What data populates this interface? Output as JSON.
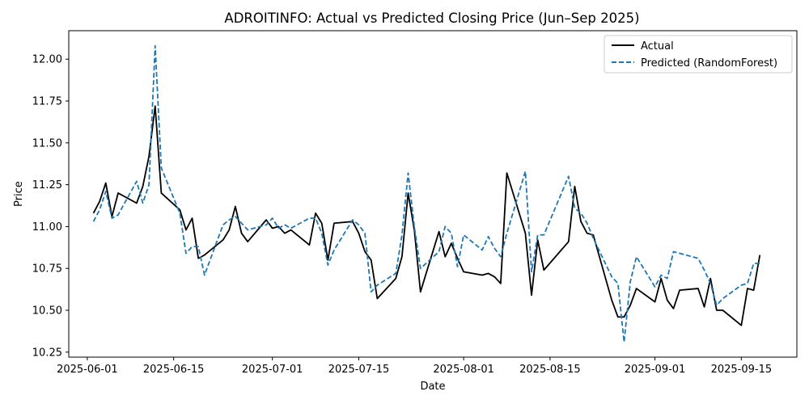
{
  "chart_data": {
    "type": "line",
    "title": "ADROITINFO: Actual vs Predicted Closing Price (Jun–Sep 2025)",
    "xlabel": "Date",
    "ylabel": "Price",
    "xlim": [
      "2025-05-29",
      "2025-09-24"
    ],
    "ylim": [
      10.22,
      12.17
    ],
    "x_ticks": [
      "2025-06-01",
      "2025-06-15",
      "2025-07-01",
      "2025-07-15",
      "2025-08-01",
      "2025-08-15",
      "2025-09-01",
      "2025-09-15"
    ],
    "y_ticks": [
      10.25,
      10.5,
      10.75,
      11.0,
      11.25,
      11.5,
      11.75,
      12.0
    ],
    "y_tick_labels": [
      "10.25",
      "10.50",
      "10.75",
      "11.00",
      "11.25",
      "11.50",
      "11.75",
      "12.00"
    ],
    "legend_position": "top-right",
    "grid": false,
    "x": [
      "2025-06-02",
      "2025-06-03",
      "2025-06-04",
      "2025-06-05",
      "2025-06-06",
      "2025-06-09",
      "2025-06-10",
      "2025-06-11",
      "2025-06-12",
      "2025-06-13",
      "2025-06-16",
      "2025-06-17",
      "2025-06-18",
      "2025-06-19",
      "2025-06-20",
      "2025-06-23",
      "2025-06-24",
      "2025-06-25",
      "2025-06-26",
      "2025-06-27",
      "2025-06-30",
      "2025-07-01",
      "2025-07-02",
      "2025-07-03",
      "2025-07-04",
      "2025-07-07",
      "2025-07-08",
      "2025-07-09",
      "2025-07-10",
      "2025-07-11",
      "2025-07-14",
      "2025-07-15",
      "2025-07-16",
      "2025-07-17",
      "2025-07-18",
      "2025-07-21",
      "2025-07-22",
      "2025-07-23",
      "2025-07-24",
      "2025-07-25",
      "2025-07-28",
      "2025-07-29",
      "2025-07-30",
      "2025-07-31",
      "2025-08-01",
      "2025-08-04",
      "2025-08-05",
      "2025-08-06",
      "2025-08-07",
      "2025-08-08",
      "2025-08-11",
      "2025-08-12",
      "2025-08-13",
      "2025-08-14",
      "2025-08-18",
      "2025-08-19",
      "2025-08-20",
      "2025-08-21",
      "2025-08-22",
      "2025-08-25",
      "2025-08-26",
      "2025-08-27",
      "2025-08-28",
      "2025-08-29",
      "2025-09-01",
      "2025-09-02",
      "2025-09-03",
      "2025-09-04",
      "2025-09-05",
      "2025-09-08",
      "2025-09-09",
      "2025-09-10",
      "2025-09-11",
      "2025-09-12",
      "2025-09-15",
      "2025-09-16",
      "2025-09-17",
      "2025-09-18"
    ],
    "series": [
      {
        "name": "Actual",
        "color": "#000000",
        "style": "solid",
        "values": [
          11.08,
          11.15,
          11.26,
          11.06,
          11.2,
          11.14,
          11.24,
          11.42,
          11.72,
          11.2,
          11.1,
          10.98,
          11.05,
          10.81,
          10.83,
          10.92,
          10.98,
          11.12,
          10.96,
          10.91,
          11.04,
          10.99,
          11.0,
          10.96,
          10.98,
          10.89,
          11.08,
          11.02,
          10.8,
          11.02,
          11.03,
          10.96,
          10.85,
          10.8,
          10.57,
          10.69,
          10.82,
          11.2,
          10.98,
          10.61,
          10.97,
          10.82,
          10.9,
          10.81,
          10.73,
          10.71,
          10.72,
          10.7,
          10.66,
          11.32,
          10.96,
          10.59,
          10.92,
          10.74,
          10.91,
          11.24,
          11.03,
          10.96,
          10.95,
          10.56,
          10.46,
          10.46,
          10.53,
          10.63,
          10.55,
          10.69,
          10.56,
          10.51,
          10.62,
          10.63,
          10.52,
          10.69,
          10.5,
          10.5,
          10.41,
          10.63,
          10.62,
          10.83
        ]
      },
      {
        "name": "Predicted (RandomForest)",
        "color": "#1f77b4",
        "style": "dashed",
        "values": [
          11.03,
          11.1,
          11.21,
          11.05,
          11.07,
          11.27,
          11.14,
          11.25,
          12.08,
          11.35,
          11.08,
          10.84,
          10.88,
          10.88,
          10.71,
          11.01,
          11.04,
          11.06,
          11.02,
          10.98,
          11.01,
          11.05,
          10.99,
          11.01,
          10.99,
          11.05,
          11.05,
          10.96,
          10.77,
          10.86,
          11.04,
          11.01,
          10.96,
          10.61,
          10.65,
          10.72,
          10.95,
          11.32,
          11.0,
          10.75,
          10.85,
          11.0,
          10.96,
          10.76,
          10.95,
          10.86,
          10.94,
          10.87,
          10.82,
          10.96,
          11.33,
          10.73,
          10.95,
          10.95,
          11.3,
          11.11,
          11.08,
          11.02,
          10.93,
          10.7,
          10.66,
          10.31,
          10.67,
          10.82,
          10.64,
          10.71,
          10.69,
          10.85,
          10.84,
          10.81,
          10.74,
          10.66,
          10.53,
          10.57,
          10.65,
          10.66,
          10.78,
          10.78
        ]
      }
    ]
  }
}
